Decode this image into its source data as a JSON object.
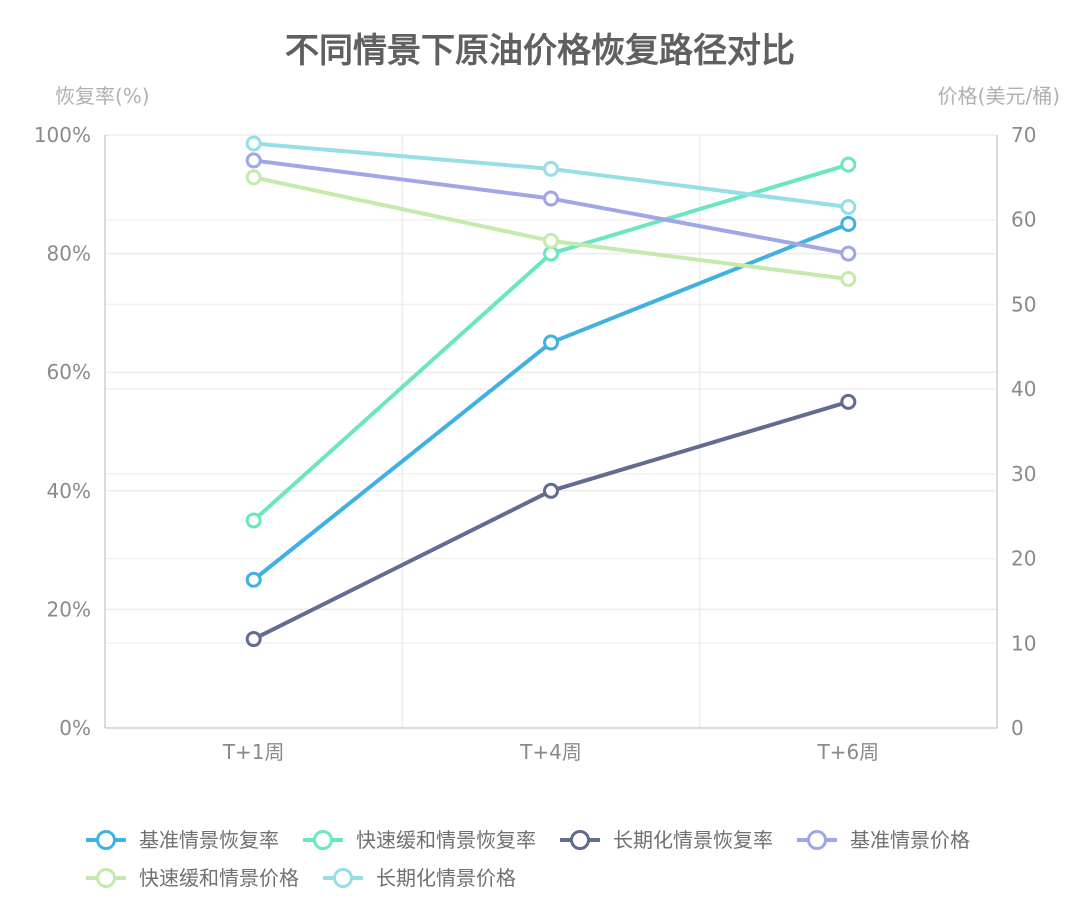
{
  "chart_data": {
    "type": "line",
    "title": "不同情景下原油价格恢复路径对比",
    "categories": [
      "T+1周",
      "T+4周",
      "T+6周"
    ],
    "y_left": {
      "label": "恢复率(%)",
      "range": [
        0,
        100
      ],
      "ticks": [
        0,
        20,
        40,
        60,
        80,
        100
      ],
      "tick_labels": [
        "0%",
        "20%",
        "40%",
        "60%",
        "80%",
        "100%"
      ]
    },
    "y_right": {
      "label": "价格(美元/桶)",
      "range": [
        0,
        70
      ],
      "ticks": [
        0,
        10,
        20,
        30,
        40,
        50,
        60,
        70
      ],
      "tick_labels": [
        "0",
        "10",
        "20",
        "30",
        "40",
        "50",
        "60",
        "70"
      ]
    },
    "grid": true,
    "legend_position": "bottom",
    "series": [
      {
        "name": "基准情景恢复率",
        "axis": "left",
        "color": "#3fb1e3",
        "values": [
          25,
          65,
          85
        ]
      },
      {
        "name": "快速缓和情景恢复率",
        "axis": "left",
        "color": "#6be6c1",
        "values": [
          35,
          80,
          95
        ]
      },
      {
        "name": "长期化情景恢复率",
        "axis": "left",
        "color": "#626c91",
        "values": [
          15,
          40,
          55
        ]
      },
      {
        "name": "基准情景价格",
        "axis": "right",
        "color": "#a0a7e6",
        "values": [
          67,
          62.5,
          56
        ]
      },
      {
        "name": "快速缓和情景价格",
        "axis": "right",
        "color": "#c4ebad",
        "values": [
          65,
          57.5,
          53
        ]
      },
      {
        "name": "长期化情景价格",
        "axis": "right",
        "color": "#96dee8",
        "values": [
          69,
          66,
          61.5
        ]
      }
    ]
  }
}
